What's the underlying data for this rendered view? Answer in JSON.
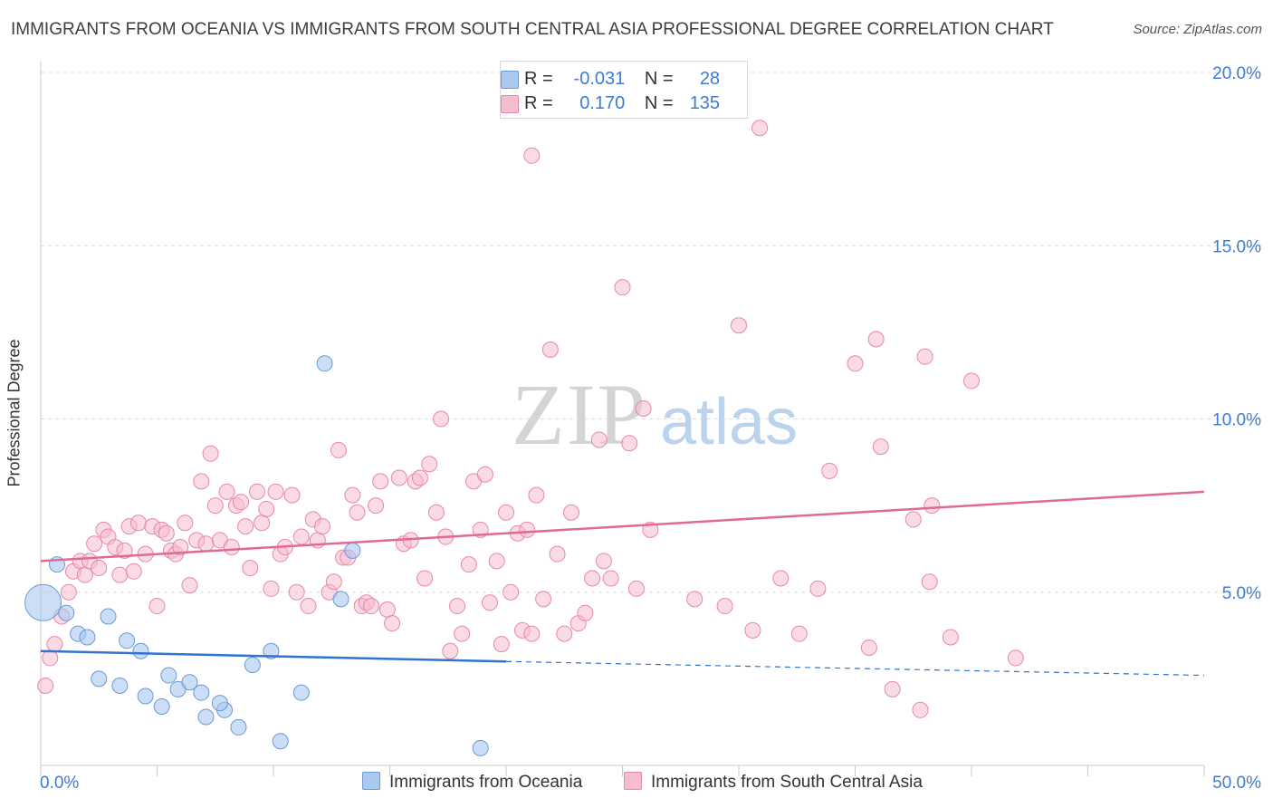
{
  "title": "IMMIGRANTS FROM OCEANIA VS IMMIGRANTS FROM SOUTH CENTRAL ASIA PROFESSIONAL DEGREE CORRELATION CHART",
  "source": "Source: ZipAtlas.com",
  "watermark": "ZIPatlas",
  "colors": {
    "blue_fill": "#aac8f0",
    "blue_stroke": "#6a9ad8",
    "blue_line": "#2f74d0",
    "pink_fill": "#f6bcd0",
    "pink_stroke": "#e888a8",
    "pink_line": "#e0699a",
    "axis_text": "#3d7bd4",
    "grid": "#dcdcdc"
  },
  "legend": {
    "rows": [
      {
        "r_label": "R =",
        "r_value": "-0.031",
        "n_label": "N =",
        "n_value": "28",
        "color": "#aac8f0"
      },
      {
        "r_label": "R =",
        "r_value": "0.170",
        "n_label": "N =",
        "n_value": "135",
        "color": "#f6bcd0"
      }
    ]
  },
  "bottom_legend": {
    "series1": "Immigrants from Oceania",
    "series2": "Immigrants from South Central Asia"
  },
  "chart_data": {
    "type": "scatter",
    "title": "IMMIGRANTS FROM OCEANIA VS IMMIGRANTS FROM SOUTH CENTRAL ASIA PROFESSIONAL DEGREE CORRELATION CHART",
    "xlabel": "",
    "ylabel": "Professional Degree",
    "xlim": [
      0,
      50
    ],
    "ylim": [
      0,
      20
    ],
    "x_tick_labels": [
      "0.0%",
      "50.0%"
    ],
    "y_ticks": [
      5,
      10,
      15,
      20
    ],
    "y_tick_labels": [
      "5.0%",
      "10.0%",
      "15.0%",
      "20.0%"
    ],
    "grid": true,
    "legend_position": "top-center",
    "series": [
      {
        "name": "Immigrants from Oceania",
        "R": -0.031,
        "N": 28,
        "trend": {
          "x": [
            0,
            20
          ],
          "y": [
            3.3,
            3.0
          ],
          "dashed_to": {
            "x": 50,
            "y": 2.6
          }
        },
        "points": [
          {
            "x": 0.1,
            "y": 4.7,
            "big": true
          },
          {
            "x": 0.7,
            "y": 5.8
          },
          {
            "x": 1.1,
            "y": 4.4
          },
          {
            "x": 1.6,
            "y": 3.8
          },
          {
            "x": 2.0,
            "y": 3.7
          },
          {
            "x": 2.5,
            "y": 2.5
          },
          {
            "x": 2.9,
            "y": 4.3
          },
          {
            "x": 3.4,
            "y": 2.3
          },
          {
            "x": 3.7,
            "y": 3.6
          },
          {
            "x": 4.3,
            "y": 3.3
          },
          {
            "x": 4.5,
            "y": 2.0
          },
          {
            "x": 5.2,
            "y": 1.7
          },
          {
            "x": 5.5,
            "y": 2.6
          },
          {
            "x": 5.9,
            "y": 2.2
          },
          {
            "x": 6.4,
            "y": 2.4
          },
          {
            "x": 6.9,
            "y": 2.1
          },
          {
            "x": 7.1,
            "y": 1.4
          },
          {
            "x": 7.9,
            "y": 1.6
          },
          {
            "x": 7.7,
            "y": 1.8
          },
          {
            "x": 8.5,
            "y": 1.1
          },
          {
            "x": 9.1,
            "y": 2.9
          },
          {
            "x": 9.9,
            "y": 3.3
          },
          {
            "x": 10.3,
            "y": 0.7
          },
          {
            "x": 11.2,
            "y": 2.1
          },
          {
            "x": 12.2,
            "y": 11.6
          },
          {
            "x": 12.9,
            "y": 4.8
          },
          {
            "x": 13.4,
            "y": 6.2
          },
          {
            "x": 18.9,
            "y": 0.5
          }
        ]
      },
      {
        "name": "Immigrants from South Central Asia",
        "R": 0.17,
        "N": 135,
        "trend": {
          "x": [
            0,
            50
          ],
          "y": [
            5.9,
            7.9
          ]
        },
        "points": [
          {
            "x": 0.2,
            "y": 2.3
          },
          {
            "x": 0.4,
            "y": 3.1
          },
          {
            "x": 0.6,
            "y": 3.5
          },
          {
            "x": 0.9,
            "y": 4.3
          },
          {
            "x": 1.2,
            "y": 5.0
          },
          {
            "x": 1.4,
            "y": 5.6
          },
          {
            "x": 1.7,
            "y": 5.9
          },
          {
            "x": 1.9,
            "y": 5.5
          },
          {
            "x": 2.1,
            "y": 5.9
          },
          {
            "x": 2.3,
            "y": 6.4
          },
          {
            "x": 2.5,
            "y": 5.7
          },
          {
            "x": 2.7,
            "y": 6.8
          },
          {
            "x": 2.9,
            "y": 6.6
          },
          {
            "x": 3.2,
            "y": 6.3
          },
          {
            "x": 3.4,
            "y": 5.5
          },
          {
            "x": 3.6,
            "y": 6.2
          },
          {
            "x": 3.8,
            "y": 6.9
          },
          {
            "x": 4.0,
            "y": 5.6
          },
          {
            "x": 4.2,
            "y": 7.0
          },
          {
            "x": 4.5,
            "y": 6.1
          },
          {
            "x": 4.8,
            "y": 6.9
          },
          {
            "x": 5.0,
            "y": 4.6
          },
          {
            "x": 5.2,
            "y": 6.8
          },
          {
            "x": 5.4,
            "y": 6.7
          },
          {
            "x": 5.6,
            "y": 6.2
          },
          {
            "x": 5.8,
            "y": 6.1
          },
          {
            "x": 6.0,
            "y": 6.3
          },
          {
            "x": 6.2,
            "y": 7.0
          },
          {
            "x": 6.4,
            "y": 5.2
          },
          {
            "x": 6.7,
            "y": 6.5
          },
          {
            "x": 6.9,
            "y": 8.2
          },
          {
            "x": 7.1,
            "y": 6.4
          },
          {
            "x": 7.3,
            "y": 9.0
          },
          {
            "x": 7.5,
            "y": 7.5
          },
          {
            "x": 7.7,
            "y": 6.5
          },
          {
            "x": 8.0,
            "y": 7.9
          },
          {
            "x": 8.2,
            "y": 6.3
          },
          {
            "x": 8.4,
            "y": 7.5
          },
          {
            "x": 8.6,
            "y": 7.6
          },
          {
            "x": 8.8,
            "y": 6.9
          },
          {
            "x": 9.0,
            "y": 5.7
          },
          {
            "x": 9.3,
            "y": 7.9
          },
          {
            "x": 9.5,
            "y": 7.0
          },
          {
            "x": 9.7,
            "y": 7.4
          },
          {
            "x": 9.9,
            "y": 5.1
          },
          {
            "x": 10.1,
            "y": 7.9
          },
          {
            "x": 10.3,
            "y": 6.1
          },
          {
            "x": 10.5,
            "y": 6.3
          },
          {
            "x": 10.8,
            "y": 7.8
          },
          {
            "x": 11.0,
            "y": 5.0
          },
          {
            "x": 11.2,
            "y": 6.6
          },
          {
            "x": 11.5,
            "y": 4.6
          },
          {
            "x": 11.7,
            "y": 7.1
          },
          {
            "x": 11.9,
            "y": 6.5
          },
          {
            "x": 12.1,
            "y": 6.9
          },
          {
            "x": 12.4,
            "y": 5.0
          },
          {
            "x": 12.6,
            "y": 5.3
          },
          {
            "x": 12.8,
            "y": 9.1
          },
          {
            "x": 13.0,
            "y": 6.0
          },
          {
            "x": 13.2,
            "y": 6.0
          },
          {
            "x": 13.4,
            "y": 7.8
          },
          {
            "x": 13.6,
            "y": 7.3
          },
          {
            "x": 13.8,
            "y": 4.6
          },
          {
            "x": 14.0,
            "y": 4.7
          },
          {
            "x": 14.2,
            "y": 4.6
          },
          {
            "x": 14.4,
            "y": 7.5
          },
          {
            "x": 14.6,
            "y": 8.2
          },
          {
            "x": 14.9,
            "y": 4.5
          },
          {
            "x": 15.1,
            "y": 4.1
          },
          {
            "x": 15.4,
            "y": 8.3
          },
          {
            "x": 15.6,
            "y": 6.4
          },
          {
            "x": 15.9,
            "y": 6.5
          },
          {
            "x": 16.1,
            "y": 8.2
          },
          {
            "x": 16.3,
            "y": 8.3
          },
          {
            "x": 16.5,
            "y": 5.4
          },
          {
            "x": 16.7,
            "y": 8.7
          },
          {
            "x": 17.0,
            "y": 7.3
          },
          {
            "x": 17.2,
            "y": 10.0
          },
          {
            "x": 17.4,
            "y": 6.6
          },
          {
            "x": 17.6,
            "y": 3.3
          },
          {
            "x": 17.9,
            "y": 4.6
          },
          {
            "x": 18.1,
            "y": 3.8
          },
          {
            "x": 18.4,
            "y": 5.8
          },
          {
            "x": 18.6,
            "y": 8.2
          },
          {
            "x": 18.9,
            "y": 6.8
          },
          {
            "x": 19.1,
            "y": 8.4
          },
          {
            "x": 19.3,
            "y": 4.7
          },
          {
            "x": 19.6,
            "y": 5.9
          },
          {
            "x": 19.8,
            "y": 3.5
          },
          {
            "x": 20.0,
            "y": 7.3
          },
          {
            "x": 20.2,
            "y": 5.0
          },
          {
            "x": 20.5,
            "y": 6.7
          },
          {
            "x": 20.7,
            "y": 3.9
          },
          {
            "x": 20.9,
            "y": 6.8
          },
          {
            "x": 21.1,
            "y": 3.8
          },
          {
            "x": 21.3,
            "y": 7.8
          },
          {
            "x": 21.6,
            "y": 4.8
          },
          {
            "x": 21.9,
            "y": 12.0
          },
          {
            "x": 22.2,
            "y": 6.1
          },
          {
            "x": 22.5,
            "y": 3.8
          },
          {
            "x": 22.8,
            "y": 7.3
          },
          {
            "x": 23.1,
            "y": 4.1
          },
          {
            "x": 23.4,
            "y": 4.4
          },
          {
            "x": 23.7,
            "y": 5.4
          },
          {
            "x": 24.0,
            "y": 9.4
          },
          {
            "x": 24.2,
            "y": 5.9
          },
          {
            "x": 24.5,
            "y": 5.4
          },
          {
            "x": 25.0,
            "y": 13.8
          },
          {
            "x": 25.3,
            "y": 9.3
          },
          {
            "x": 25.6,
            "y": 5.1
          },
          {
            "x": 25.9,
            "y": 10.3
          },
          {
            "x": 26.2,
            "y": 6.8
          },
          {
            "x": 21.1,
            "y": 17.6
          },
          {
            "x": 28.1,
            "y": 4.8
          },
          {
            "x": 29.4,
            "y": 4.6
          },
          {
            "x": 30.0,
            "y": 12.7
          },
          {
            "x": 30.6,
            "y": 3.9
          },
          {
            "x": 30.9,
            "y": 18.4
          },
          {
            "x": 31.8,
            "y": 5.4
          },
          {
            "x": 32.6,
            "y": 3.8
          },
          {
            "x": 33.4,
            "y": 5.1
          },
          {
            "x": 33.9,
            "y": 8.5
          },
          {
            "x": 35.0,
            "y": 11.6
          },
          {
            "x": 35.6,
            "y": 3.4
          },
          {
            "x": 35.9,
            "y": 12.3
          },
          {
            "x": 36.1,
            "y": 9.2
          },
          {
            "x": 36.6,
            "y": 2.2
          },
          {
            "x": 37.5,
            "y": 7.1
          },
          {
            "x": 38.0,
            "y": 11.8
          },
          {
            "x": 37.8,
            "y": 1.6
          },
          {
            "x": 38.2,
            "y": 5.3
          },
          {
            "x": 38.3,
            "y": 7.5
          },
          {
            "x": 39.1,
            "y": 3.7
          },
          {
            "x": 40.0,
            "y": 11.1
          },
          {
            "x": 41.9,
            "y": 3.1
          }
        ]
      }
    ]
  }
}
